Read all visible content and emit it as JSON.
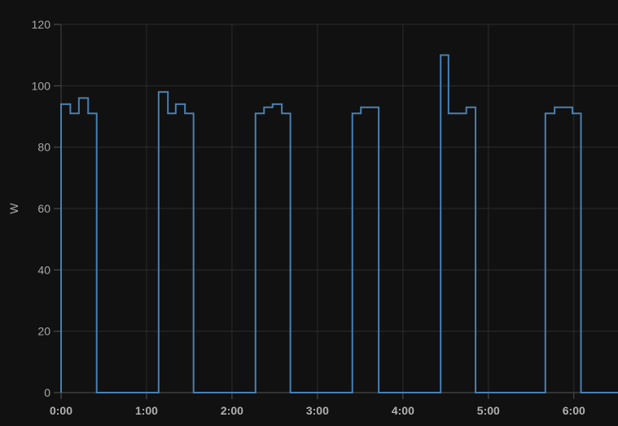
{
  "chart_data": {
    "type": "line",
    "step": true,
    "xlabel": "",
    "ylabel": "W",
    "ylim": [
      0,
      120
    ],
    "xlim": [
      "0:00:00",
      "6:31:00"
    ],
    "yticks": [
      "0",
      "20",
      "40",
      "60",
      "80",
      "100",
      "120"
    ],
    "xticks": [
      "0:00",
      "1:00",
      "2:00",
      "3:00",
      "4:00",
      "5:00",
      "6:00"
    ],
    "grid": true,
    "line_color": "#4a7fb0",
    "series": [
      {
        "points": [
          [
            "0:00:00",
            94
          ],
          [
            "0:06:30",
            91
          ],
          [
            "0:12:30",
            96
          ],
          [
            "0:19:00",
            91
          ],
          [
            "0:25:00",
            0
          ],
          [
            "1:08:30",
            98
          ],
          [
            "1:15:00",
            91
          ],
          [
            "1:20:30",
            94
          ],
          [
            "1:27:00",
            91
          ],
          [
            "1:33:00",
            0
          ],
          [
            "2:16:30",
            91
          ],
          [
            "2:22:30",
            93
          ],
          [
            "2:28:30",
            94
          ],
          [
            "2:35:00",
            91
          ],
          [
            "2:41:00",
            0
          ],
          [
            "3:24:30",
            91
          ],
          [
            "3:30:30",
            93
          ],
          [
            "3:43:00",
            0
          ],
          [
            "4:26:30",
            110
          ],
          [
            "4:32:00",
            91
          ],
          [
            "4:44:30",
            93
          ],
          [
            "4:51:00",
            0
          ],
          [
            "5:40:00",
            91
          ],
          [
            "5:46:30",
            93
          ],
          [
            "5:59:00",
            91
          ],
          [
            "6:05:00",
            0
          ],
          [
            "6:31:00",
            0
          ]
        ]
      }
    ]
  }
}
